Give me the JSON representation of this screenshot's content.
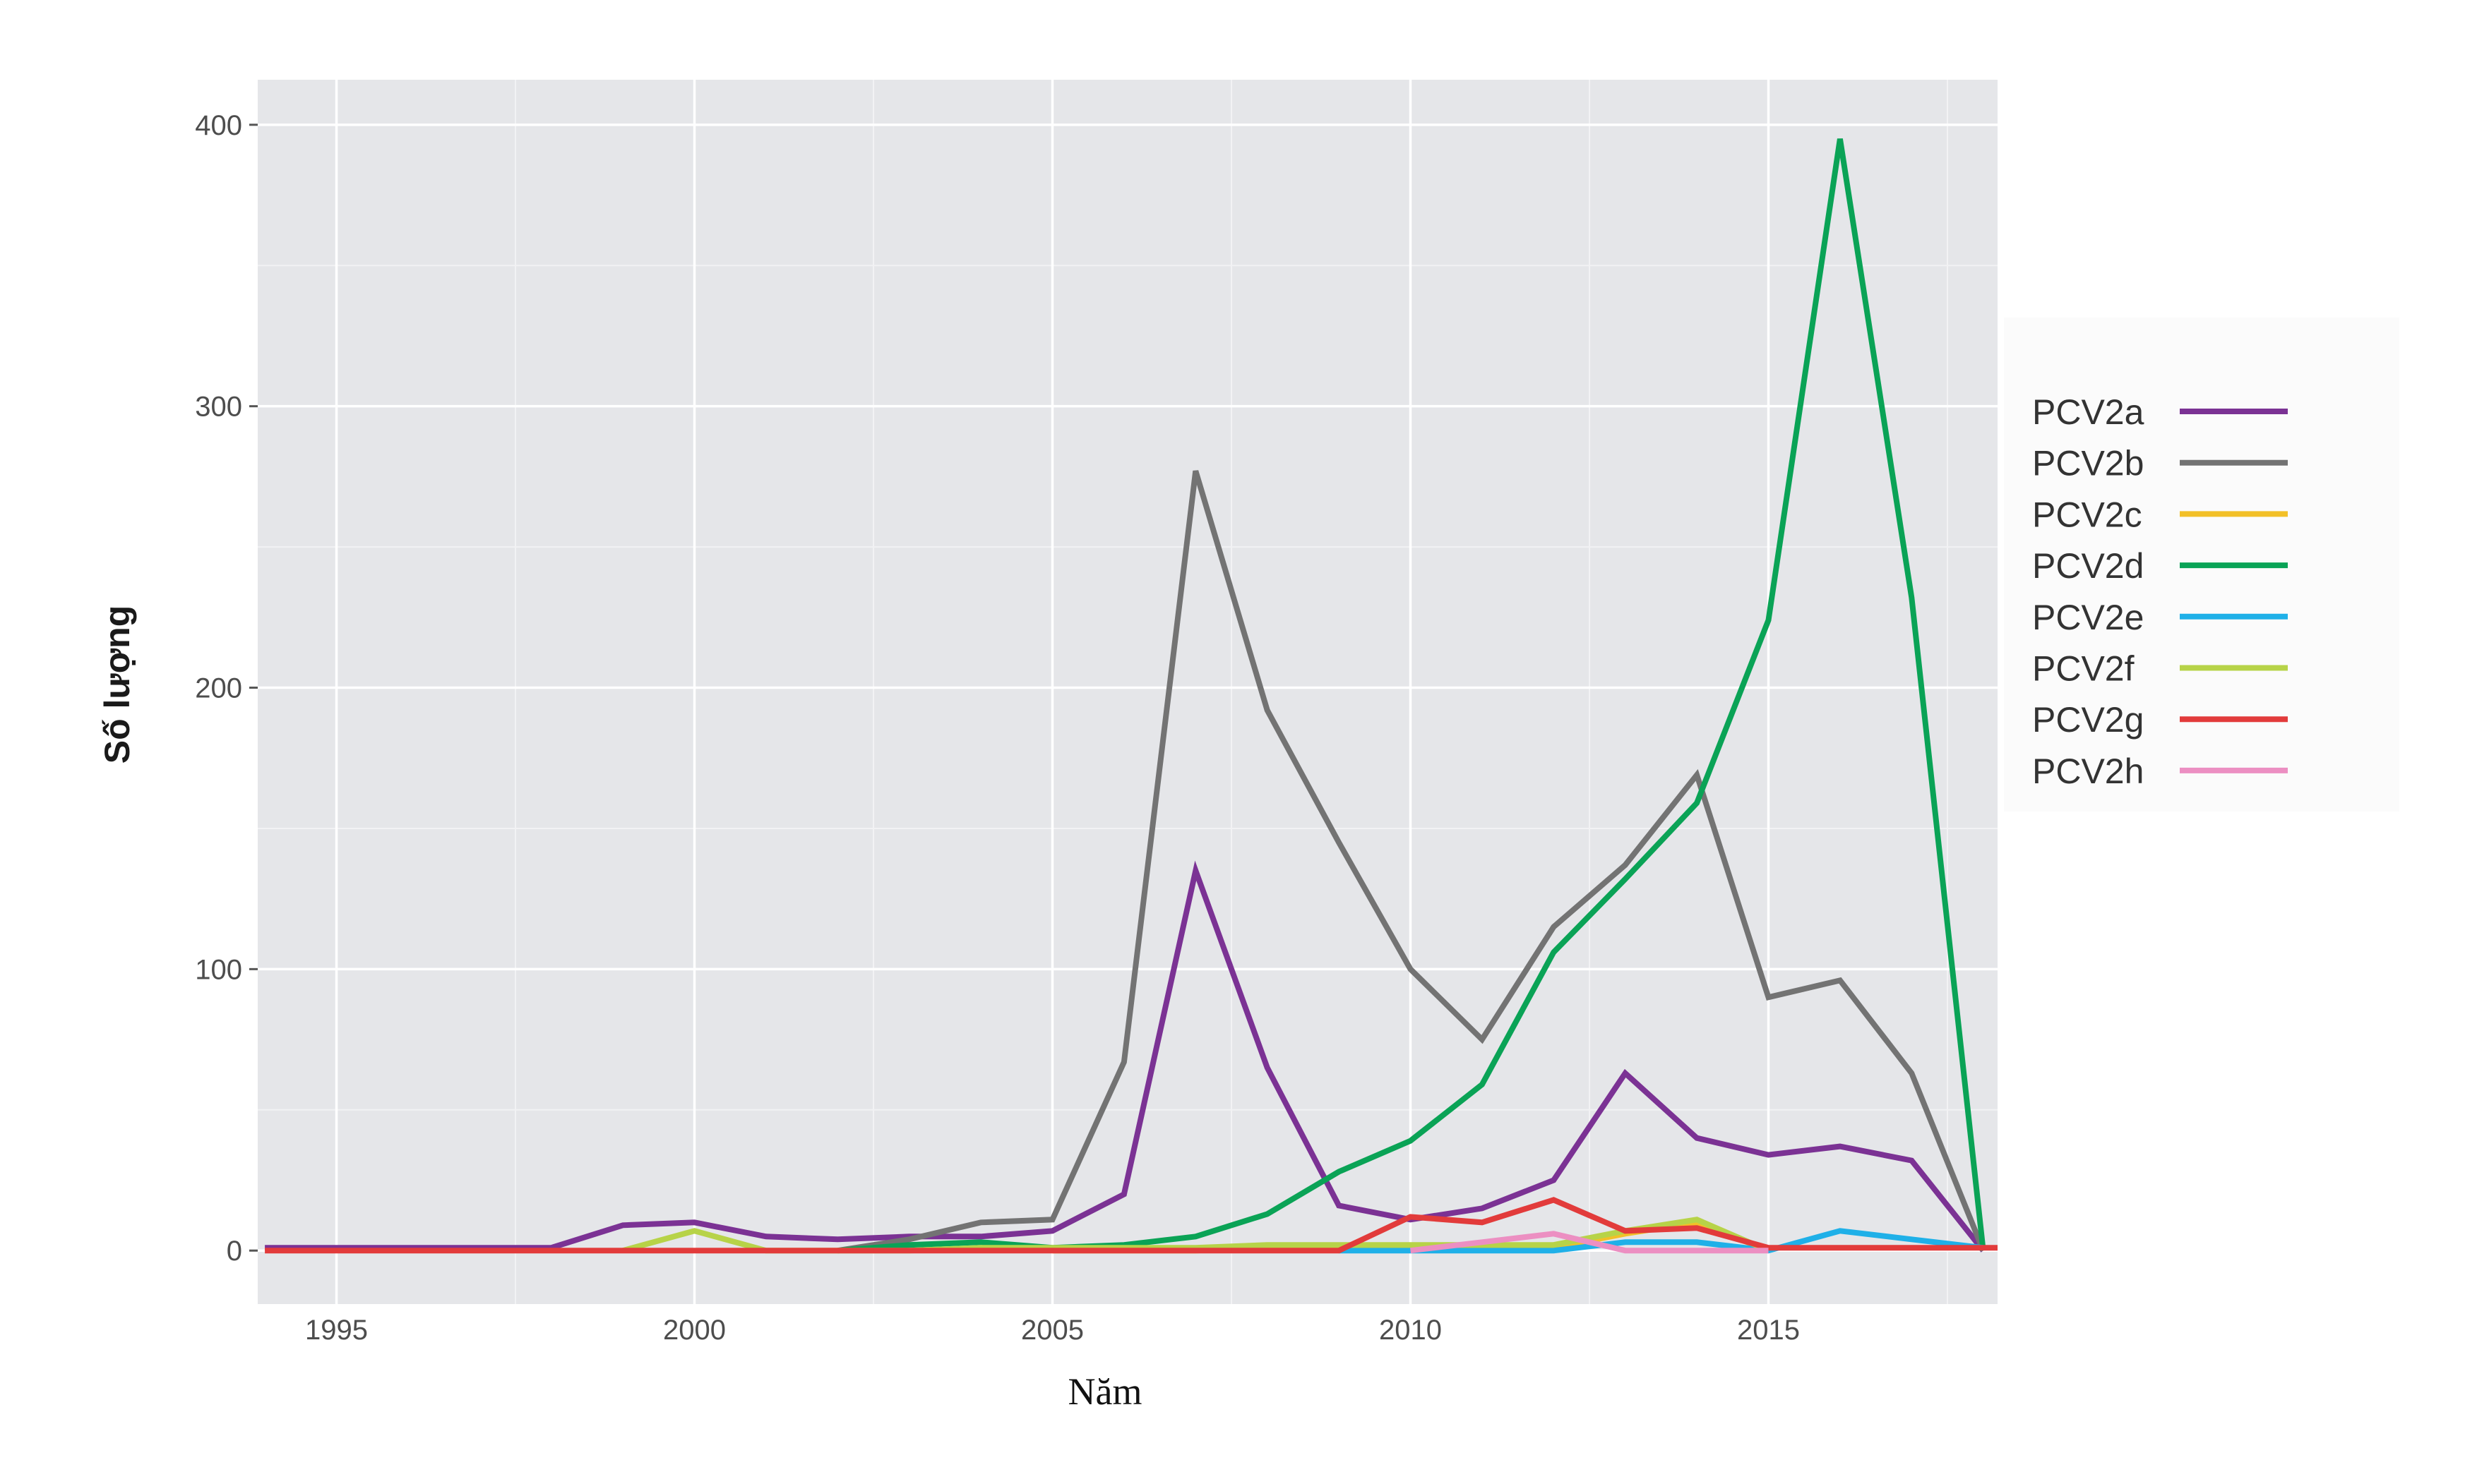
{
  "chart_data": {
    "type": "line",
    "title": "",
    "xlabel": "Năm",
    "ylabel": "Số lượng",
    "xlim": [
      1993.9,
      2018.2
    ],
    "ylim": [
      -19,
      416
    ],
    "x_ticks": [
      1995,
      2000,
      2005,
      2010,
      2015
    ],
    "x_tick_labels": [
      "1995",
      "2000",
      "2005",
      "2010",
      "2015"
    ],
    "y_ticks": [
      0,
      100,
      200,
      300,
      400
    ],
    "y_tick_labels": [
      "0",
      "100",
      "200",
      "300",
      "400"
    ],
    "grid": true,
    "legend": "right",
    "series": [
      {
        "name": "PCV2a",
        "color": "#7b3294",
        "x": [
          1994,
          1995,
          1996,
          1997,
          1998,
          1999,
          2000,
          2001,
          2002,
          2003,
          2004,
          2005,
          2006,
          2007,
          2008,
          2009,
          2010,
          2011,
          2012,
          2013,
          2014,
          2015,
          2016,
          2017,
          2018
        ],
        "y": [
          1,
          1,
          1,
          1,
          1,
          9,
          10,
          5,
          4,
          5,
          5,
          7,
          20,
          135,
          65,
          16,
          11,
          15,
          25,
          63,
          40,
          34,
          37,
          32,
          0
        ]
      },
      {
        "name": "PCV2b",
        "color": "#737373",
        "x": [
          2002,
          2003,
          2004,
          2005,
          2006,
          2007,
          2008,
          2009,
          2010,
          2011,
          2012,
          2013,
          2014,
          2015,
          2016,
          2017,
          2018
        ],
        "y": [
          0,
          4,
          10,
          11,
          67,
          277,
          192,
          145,
          100,
          75,
          115,
          137,
          169,
          90,
          96,
          63,
          0
        ]
      },
      {
        "name": "PCV2c",
        "color": "#f2c028",
        "x": [
          2005,
          2006,
          2007,
          2008,
          2009,
          2010,
          2011,
          2012,
          2013,
          2014,
          2015
        ],
        "y": [
          0,
          0,
          0,
          1,
          1,
          1,
          1,
          1,
          6,
          10,
          0
        ]
      },
      {
        "name": "PCV2d",
        "color": "#0aa356",
        "x": [
          2002,
          2003,
          2004,
          2005,
          2006,
          2007,
          2008,
          2009,
          2010,
          2011,
          2012,
          2013,
          2014,
          2015,
          2016,
          2017,
          2018
        ],
        "y": [
          0,
          2,
          3,
          1,
          2,
          5,
          13,
          28,
          39,
          59,
          106,
          132,
          159,
          224,
          395,
          232,
          0
        ]
      },
      {
        "name": "PCV2e",
        "color": "#1fb0e8",
        "x": [
          2009,
          2010,
          2011,
          2012,
          2013,
          2014,
          2015,
          2016,
          2017,
          2018
        ],
        "y": [
          0,
          0,
          0,
          0,
          3,
          3,
          0,
          7,
          4,
          1
        ]
      },
      {
        "name": "PCV2f",
        "color": "#b7d348",
        "x": [
          1999,
          2000,
          2001,
          2002,
          2003,
          2004,
          2005,
          2006,
          2007,
          2008,
          2009,
          2010,
          2011,
          2012,
          2013,
          2014,
          2015
        ],
        "y": [
          0,
          7,
          0,
          0,
          0,
          1,
          1,
          1,
          1,
          2,
          2,
          2,
          2,
          2,
          7,
          11,
          0
        ]
      },
      {
        "name": "PCV2g",
        "color": "#e23b3b",
        "x": [
          1994,
          1995,
          1996,
          1997,
          1998,
          1999,
          2000,
          2001,
          2002,
          2003,
          2004,
          2005,
          2006,
          2007,
          2008,
          2009,
          2010,
          2011,
          2012,
          2013,
          2014,
          2015,
          2016,
          2017,
          2018.2
        ],
        "y": [
          0,
          0,
          0,
          0,
          0,
          0,
          0,
          0,
          0,
          0,
          0,
          0,
          0,
          0,
          0,
          0,
          12,
          10,
          18,
          7,
          8,
          1,
          1,
          1,
          1
        ]
      },
      {
        "name": "PCV2h",
        "color": "#ec8fc2",
        "x": [
          2010,
          2011,
          2012,
          2013,
          2014,
          2015
        ],
        "y": [
          0,
          3,
          6,
          0,
          0,
          0
        ]
      }
    ]
  }
}
